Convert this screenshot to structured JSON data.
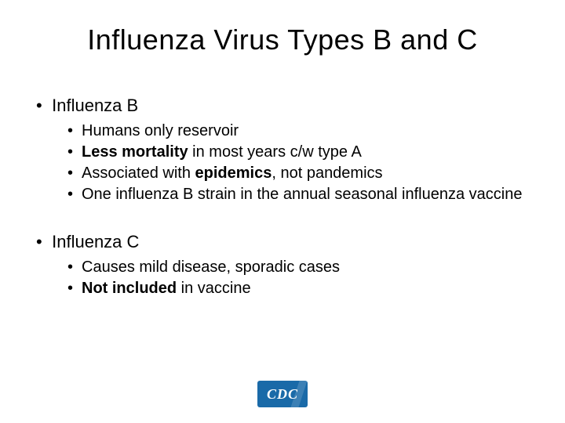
{
  "title": "Influenza Virus Types B and C",
  "sections": [
    {
      "header": "Influenza B",
      "items": [
        {
          "plain": "Humans only reservoir"
        },
        {
          "boldPrefix": "Less mortality",
          "rest": " in most years c/w type A"
        },
        {
          "prefix": "Associated with ",
          "boldMid": "epidemics",
          "rest": ", not pandemics"
        },
        {
          "plain": "One influenza B strain in the annual seasonal influenza vaccine"
        }
      ]
    },
    {
      "header": "Influenza C",
      "items": [
        {
          "plain": "Causes mild disease, sporadic cases"
        },
        {
          "boldPrefix": "Not included",
          "rest": " in vaccine"
        }
      ]
    }
  ],
  "logo": {
    "text": "CDC",
    "background": "#1a6aa8",
    "textColor": "#ffffff"
  },
  "colors": {
    "background": "#ffffff",
    "text": "#000000"
  },
  "typography": {
    "title_fontsize": 36,
    "header_fontsize": 22,
    "item_fontsize": 20,
    "font_family": "Arial"
  }
}
